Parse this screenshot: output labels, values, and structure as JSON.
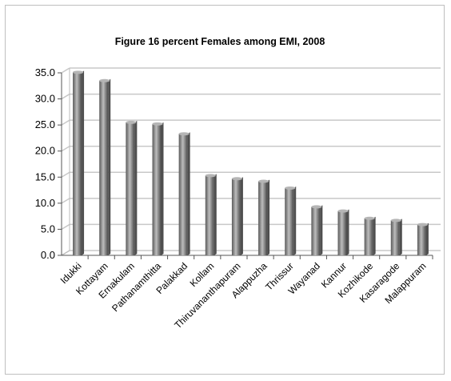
{
  "chart_data": {
    "type": "bar",
    "title": "Figure 16  percent Females among EMI, 2008",
    "xlabel": "",
    "ylabel": "",
    "ylim": [
      0,
      35
    ],
    "yticks": [
      "0.0",
      "5.0",
      "10.0",
      "15.0",
      "20.0",
      "25.0",
      "30.0",
      "35.0"
    ],
    "grid": true,
    "categories": [
      "Idukki",
      "Kottayam",
      "Ernakulam",
      "Pathanamthitta",
      "Palakkad",
      "Kollam",
      "Thiruvananthapuram",
      "Alappuzha",
      "Thrissur",
      "Wayanad",
      "Kannur",
      "Kozhikode",
      "Kasaragode",
      "Malappuram"
    ],
    "values": [
      35.1,
      33.5,
      25.5,
      25.2,
      23.3,
      15.3,
      14.7,
      14.2,
      12.9,
      9.3,
      8.5,
      7.1,
      6.7,
      5.9
    ],
    "colors": {
      "bar": "#7f7f7f",
      "bar_light": "#b5b5b5",
      "bar_dark": "#4f4f4f",
      "grid": "#c8c8c8"
    }
  }
}
